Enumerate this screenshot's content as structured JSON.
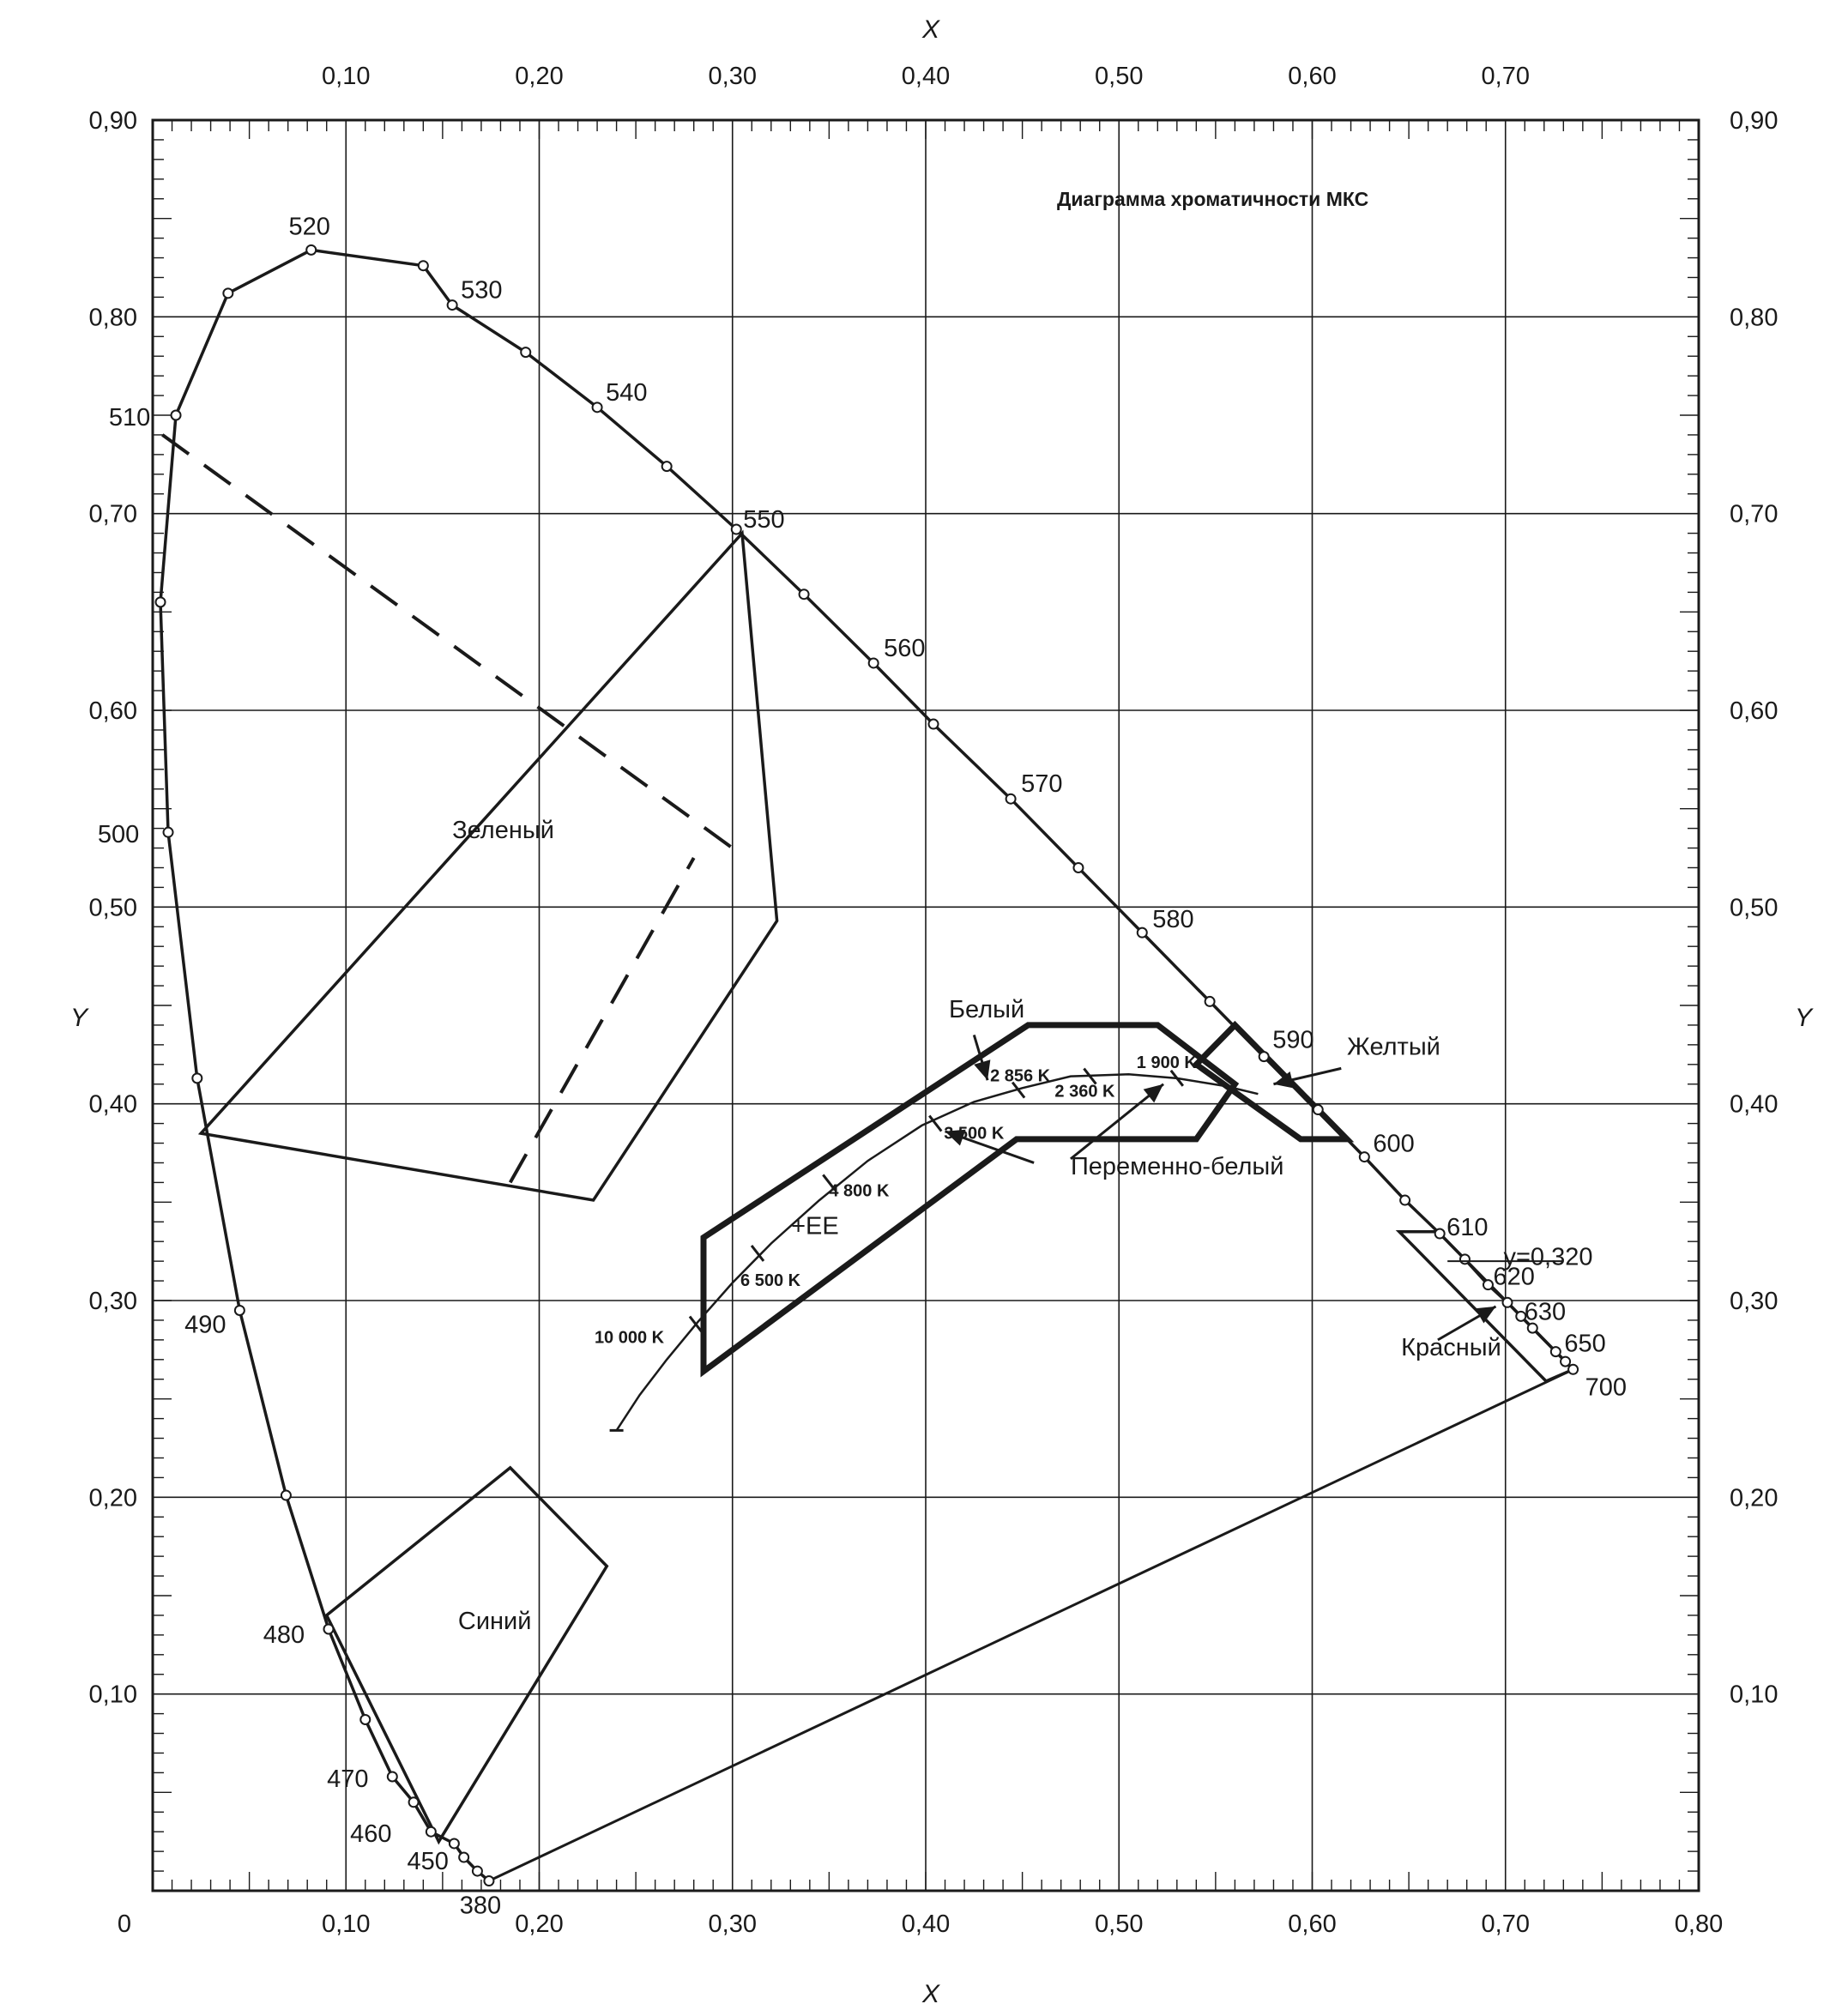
{
  "colors": {
    "ink": "#1a1a1a",
    "grid": "#1a1a1a",
    "background": "#ffffff"
  },
  "chart_data": {
    "type": "diagram",
    "title": "Диаграмма хроматичности МКС",
    "xlabel": "X",
    "ylabel": "Y",
    "xlim": [
      0,
      0.8
    ],
    "ylim": [
      0,
      0.9
    ],
    "grid": true,
    "x_ticks": [
      "0",
      "0,10",
      "0,20",
      "0,30",
      "0,40",
      "0,50",
      "0,60",
      "0,70",
      "0,80"
    ],
    "x_ticks_top": [
      "0,10",
      "0,20",
      "0,30",
      "0,40",
      "0,50",
      "0,60",
      "0,70"
    ],
    "y_ticks": [
      "0,10",
      "0,20",
      "0,30",
      "0,40",
      "0,50",
      "0,60",
      "0,70",
      "0,80",
      "0,90"
    ],
    "spectral_locus": [
      {
        "wl": "380",
        "x": 0.174,
        "y": 0.005
      },
      {
        "wl": "",
        "x": 0.168,
        "y": 0.01
      },
      {
        "wl": "450",
        "x": 0.161,
        "y": 0.017
      },
      {
        "wl": "",
        "x": 0.156,
        "y": 0.024
      },
      {
        "wl": "460",
        "x": 0.144,
        "y": 0.03
      },
      {
        "wl": "",
        "x": 0.135,
        "y": 0.045
      },
      {
        "wl": "470",
        "x": 0.124,
        "y": 0.058
      },
      {
        "wl": "",
        "x": 0.11,
        "y": 0.087
      },
      {
        "wl": "480",
        "x": 0.091,
        "y": 0.133
      },
      {
        "wl": "",
        "x": 0.069,
        "y": 0.201
      },
      {
        "wl": "490",
        "x": 0.045,
        "y": 0.295
      },
      {
        "wl": "",
        "x": 0.023,
        "y": 0.413
      },
      {
        "wl": "500",
        "x": 0.008,
        "y": 0.538
      },
      {
        "wl": "",
        "x": 0.004,
        "y": 0.655
      },
      {
        "wl": "510",
        "x": 0.012,
        "y": 0.75
      },
      {
        "wl": "",
        "x": 0.039,
        "y": 0.812
      },
      {
        "wl": "520",
        "x": 0.082,
        "y": 0.834
      },
      {
        "wl": "",
        "x": 0.14,
        "y": 0.826
      },
      {
        "wl": "530",
        "x": 0.155,
        "y": 0.806
      },
      {
        "wl": "",
        "x": 0.193,
        "y": 0.782
      },
      {
        "wl": "540",
        "x": 0.23,
        "y": 0.754
      },
      {
        "wl": "",
        "x": 0.266,
        "y": 0.724
      },
      {
        "wl": "550",
        "x": 0.302,
        "y": 0.692
      },
      {
        "wl": "",
        "x": 0.337,
        "y": 0.659
      },
      {
        "wl": "560",
        "x": 0.373,
        "y": 0.624
      },
      {
        "wl": "",
        "x": 0.404,
        "y": 0.593
      },
      {
        "wl": "570",
        "x": 0.444,
        "y": 0.555
      },
      {
        "wl": "",
        "x": 0.479,
        "y": 0.52
      },
      {
        "wl": "580",
        "x": 0.512,
        "y": 0.487
      },
      {
        "wl": "",
        "x": 0.547,
        "y": 0.452
      },
      {
        "wl": "590",
        "x": 0.575,
        "y": 0.424
      },
      {
        "wl": "",
        "x": 0.603,
        "y": 0.397
      },
      {
        "wl": "600",
        "x": 0.627,
        "y": 0.373
      },
      {
        "wl": "",
        "x": 0.648,
        "y": 0.351
      },
      {
        "wl": "610",
        "x": 0.666,
        "y": 0.334
      },
      {
        "wl": "",
        "x": 0.679,
        "y": 0.321
      },
      {
        "wl": "620",
        "x": 0.691,
        "y": 0.308
      },
      {
        "wl": "",
        "x": 0.701,
        "y": 0.299
      },
      {
        "wl": "630",
        "x": 0.708,
        "y": 0.292
      },
      {
        "wl": "",
        "x": 0.714,
        "y": 0.286
      },
      {
        "wl": "650",
        "x": 0.726,
        "y": 0.274
      },
      {
        "wl": "",
        "x": 0.731,
        "y": 0.269
      },
      {
        "wl": "700",
        "x": 0.735,
        "y": 0.265
      }
    ],
    "purple_line": [
      [
        0.174,
        0.005
      ],
      [
        0.735,
        0.265
      ]
    ],
    "planckian_locus": [
      [
        0.24,
        0.234
      ],
      [
        0.252,
        0.252
      ],
      [
        0.266,
        0.27
      ],
      [
        0.282,
        0.289
      ],
      [
        0.3,
        0.309
      ],
      [
        0.32,
        0.329
      ],
      [
        0.345,
        0.351
      ],
      [
        0.37,
        0.371
      ],
      [
        0.398,
        0.389
      ],
      [
        0.425,
        0.401
      ],
      [
        0.45,
        0.408
      ],
      [
        0.475,
        0.414
      ],
      [
        0.505,
        0.415
      ],
      [
        0.53,
        0.413
      ],
      [
        0.555,
        0.409
      ],
      [
        0.572,
        0.405
      ]
    ],
    "cct_points": [
      {
        "label": "10 000 K",
        "x": 0.281,
        "y": 0.288
      },
      {
        "label": "6 500 K",
        "x": 0.313,
        "y": 0.324
      },
      {
        "label": "4 800 K",
        "x": 0.35,
        "y": 0.36
      },
      {
        "label": "3 500 K",
        "x": 0.405,
        "y": 0.39
      },
      {
        "label": "2 856 K",
        "x": 0.448,
        "y": 0.407
      },
      {
        "label": "2 360 K",
        "x": 0.485,
        "y": 0.414
      },
      {
        "label": "1 900 K",
        "x": 0.53,
        "y": 0.413
      }
    ],
    "equal_energy": {
      "label": "+EE",
      "x": 0.333,
      "y": 0.333
    },
    "regions": [
      {
        "name": "Зеленый",
        "points": [
          [
            0.025,
            0.385
          ],
          [
            0.228,
            0.351
          ],
          [
            0.323,
            0.493
          ],
          [
            0.305,
            0.69
          ]
        ]
      },
      {
        "name": "Синий",
        "points": [
          [
            0.09,
            0.14
          ],
          [
            0.185,
            0.215
          ],
          [
            0.235,
            0.165
          ],
          [
            0.148,
            0.025
          ]
        ]
      },
      {
        "name": "Красный",
        "points": [
          [
            0.645,
            0.335
          ],
          [
            0.665,
            0.335
          ],
          [
            0.735,
            0.265
          ],
          [
            0.721,
            0.259
          ]
        ]
      },
      {
        "name": "Желтый",
        "points": [
          [
            0.54,
            0.42
          ],
          [
            0.56,
            0.44
          ],
          [
            0.618,
            0.382
          ],
          [
            0.594,
            0.382
          ]
        ]
      },
      {
        "name": "Белый",
        "points": [
          [
            0.285,
            0.332
          ],
          [
            0.453,
            0.44
          ],
          [
            0.52,
            0.44
          ],
          [
            0.56,
            0.41
          ],
          [
            0.54,
            0.382
          ],
          [
            0.447,
            0.382
          ],
          [
            0.285,
            0.264
          ]
        ]
      }
    ],
    "white_inner_line": [
      [
        0.285,
        0.264
      ],
      [
        0.285,
        0.332
      ]
    ],
    "green_dashed": [
      [
        0.005,
        0.74
      ],
      [
        0.3,
        0.53
      ]
    ],
    "green_dashed_2": [
      [
        0.185,
        0.36
      ],
      [
        0.28,
        0.525
      ]
    ],
    "annotations": [
      {
        "text": "Зеленый",
        "x": 0.155,
        "y": 0.535
      },
      {
        "text": "Синий",
        "x": 0.158,
        "y": 0.133
      },
      {
        "text": "Белый",
        "x": 0.412,
        "y": 0.444
      },
      {
        "text": "Желтый",
        "x": 0.618,
        "y": 0.425
      },
      {
        "text": "Переменно-белый",
        "x": 0.475,
        "y": 0.364
      },
      {
        "text": "Красный",
        "x": 0.646,
        "y": 0.272
      },
      {
        "text": "y=0,320",
        "x": 0.699,
        "y": 0.318
      }
    ]
  }
}
